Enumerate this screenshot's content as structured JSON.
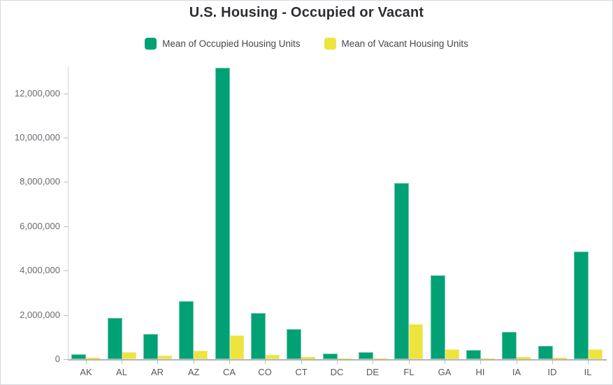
{
  "title": "U.S. Housing - Occupied or Vacant",
  "legend": [
    {
      "label": "Mean of Occupied Housing Units",
      "color": "#00a175",
      "border": "#6ec9aa"
    },
    {
      "label": "Mean of Vacant Housing Units",
      "color": "#ede43c",
      "border": "#f1ea8e"
    }
  ],
  "chart_data": {
    "type": "bar",
    "title": "U.S. Housing - Occupied or Vacant",
    "categories": [
      "AK",
      "AL",
      "AR",
      "AZ",
      "CA",
      "CO",
      "CT",
      "DC",
      "DE",
      "FL",
      "GA",
      "HI",
      "IA",
      "ID",
      "IL"
    ],
    "series": [
      {
        "name": "Mean of Occupied Housing Units",
        "color": "#00a175",
        "border": "#6ec9aa",
        "values": [
          220000,
          1850000,
          1150000,
          2620000,
          13150000,
          2090000,
          1350000,
          250000,
          310000,
          7950000,
          3800000,
          420000,
          1240000,
          590000,
          4870000
        ]
      },
      {
        "name": "Mean of Vacant Housing Units",
        "color": "#ede43c",
        "border": "#f1ea8e",
        "values": [
          50000,
          320000,
          170000,
          370000,
          1060000,
          175000,
          100000,
          25000,
          30000,
          1590000,
          450000,
          40000,
          90000,
          50000,
          440000
        ]
      }
    ],
    "xlabel": "",
    "ylabel": "",
    "ylim": [
      0,
      13280000
    ],
    "yticks": [
      0,
      2000000,
      4000000,
      6000000,
      8000000,
      10000000,
      12000000
    ],
    "ytick_labels": [
      "0",
      "2,000,000",
      "4,000,000",
      "6,000,000",
      "8,000,000",
      "10,000,000",
      "12,000,000"
    ],
    "grid": false,
    "legend_position": "top"
  },
  "colors": {
    "background": "#ffffff",
    "widget_border": "#d5d8dc",
    "axis_line": "#d3d3d8",
    "baseline": "#b4b4ba",
    "tick": "#bcbcc2",
    "title_text": "#2d2d32",
    "axis_text": "#6a6a72",
    "category_text": "#56565e"
  }
}
